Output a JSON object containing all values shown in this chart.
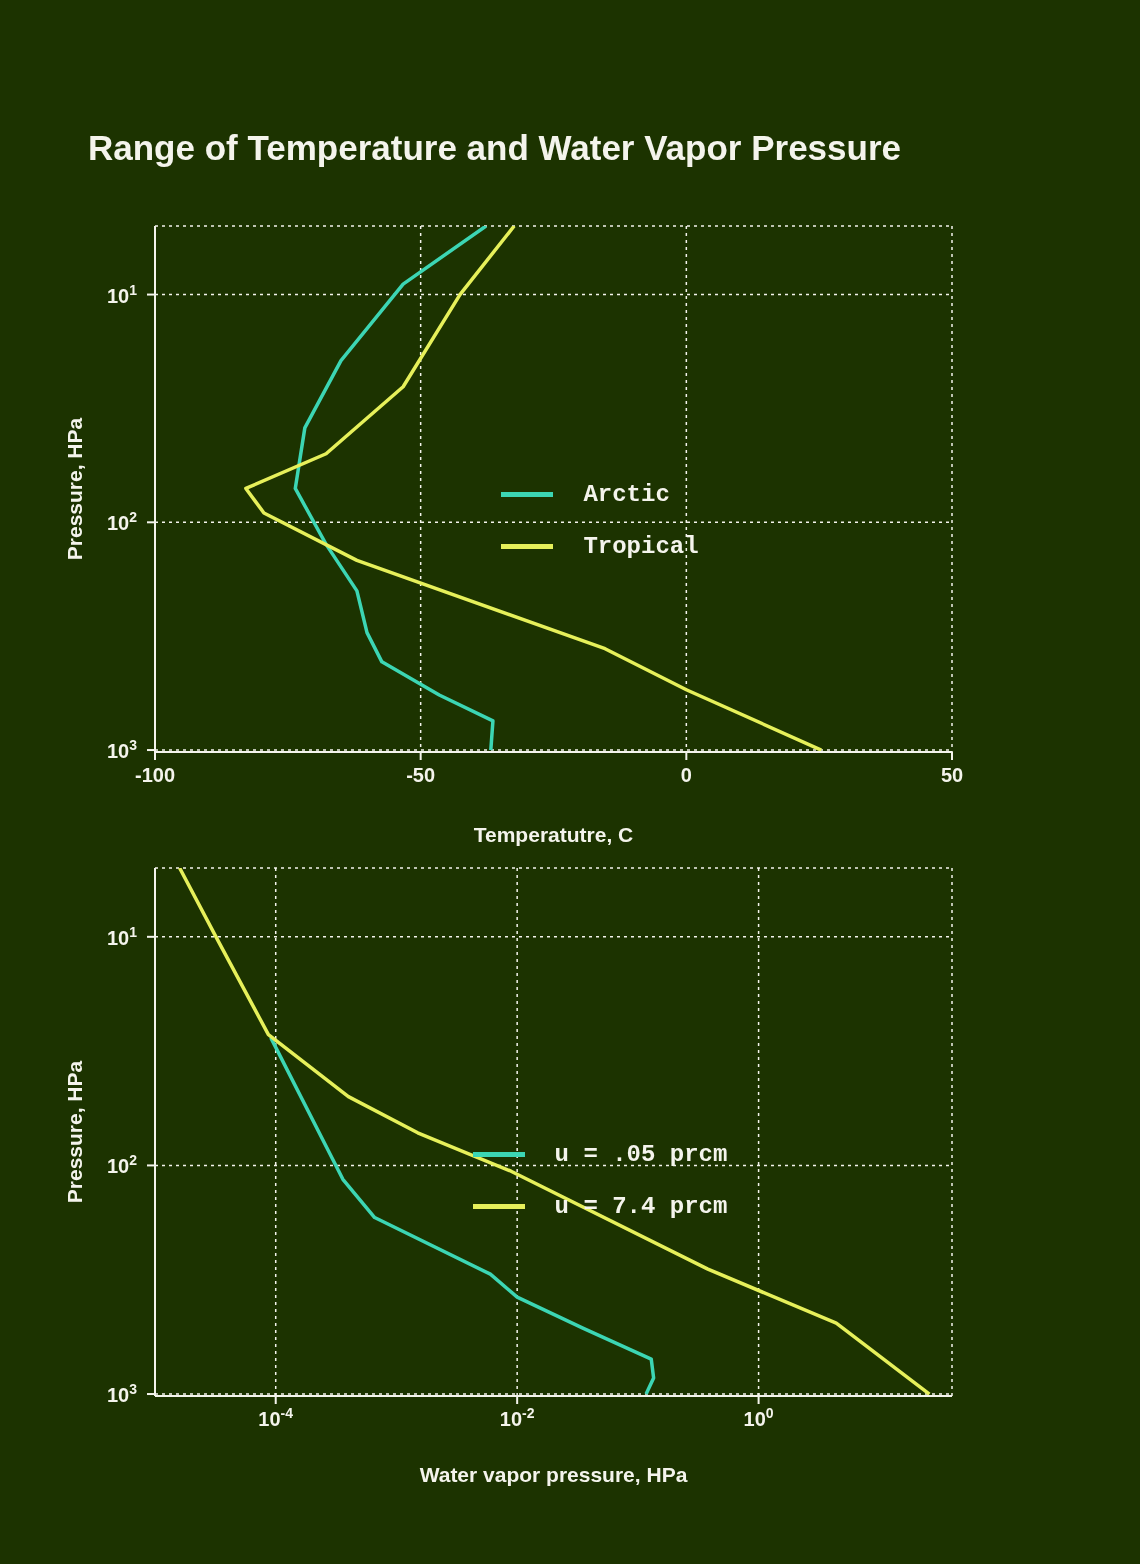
{
  "chart_data": [
    {
      "type": "line",
      "title": "Range of Temperature and Water Vapor Pressure",
      "xlabel": "Temperatutre, C",
      "ylabel": "Pressure, HPa",
      "log": "y",
      "grid": true,
      "legend": "center",
      "marker": "none",
      "line_style": "solid",
      "xlim": [
        -100,
        50
      ],
      "xticks": [
        -100,
        -50,
        0,
        50
      ],
      "ylim": [
        1020,
        5
      ],
      "yticks": [
        {
          "value": 10,
          "label": "10$^{1}$"
        },
        {
          "value": 100,
          "label": "10$^{2}$"
        },
        {
          "value": 1000,
          "label": "10$^{3}$"
        }
      ],
      "series": [
        {
          "name": "Arctic",
          "color": "#3cd6b4",
          "x": [
            -37.7,
            -53.3,
            -65.0,
            -71.8,
            -73.6,
            -67.8,
            -62.0,
            -60.1,
            -57.3,
            -46.5,
            -36.4,
            -36.8
          ],
          "values": [
            5,
            9,
            19.5,
            38.5,
            71,
            125,
            200,
            305,
            410,
            573,
            745,
            1000
          ]
        },
        {
          "name": "Tropical",
          "color": "#e6f05a",
          "x": [
            -32.4,
            -42.6,
            -53.3,
            -67.8,
            -82.9,
            -79.5,
            -62.0,
            -15.3,
            0.1,
            25.4
          ],
          "values": [
            5,
            10,
            25.4,
            50,
            71,
            91,
            147,
            359,
            545,
            1000
          ]
        }
      ]
    },
    {
      "type": "line",
      "xlabel": "Water vapor pressure, HPa",
      "ylabel": "Pressure, HPa",
      "log": "xy",
      "grid": true,
      "legend": "center",
      "marker": "none",
      "line_style": "solid",
      "xlim": [
        1e-05,
        40
      ],
      "xticks": [
        {
          "value": 0.0001,
          "label": "10$^{-4}$"
        },
        {
          "value": 0.01,
          "label": "10$^{-2}$"
        },
        {
          "value": 1,
          "label": "10$^{0}$"
        }
      ],
      "ylim": [
        1020,
        5
      ],
      "yticks": [
        {
          "value": 10,
          "label": "10$^{1}$"
        },
        {
          "value": 100,
          "label": "10$^{2}$"
        },
        {
          "value": 1000,
          "label": "10$^{3}$"
        }
      ],
      "series": [
        {
          "name": "u = .05 prcm",
          "color": "#3cd6b4",
          "x": [
            9.1e-05,
            0.00036,
            0.00066,
            0.006,
            0.01,
            0.035,
            0.129,
            0.135,
            0.117
          ],
          "values": [
            27.6,
            115,
            169,
            299,
            377,
            515,
            703,
            850,
            1000
          ]
        },
        {
          "name": "u = 7.4 prcm",
          "color": "#e6f05a",
          "x": [
            1.6e-05,
            3.2e-05,
            8.7e-05,
            0.0004,
            0.0015,
            0.0089,
            0.38,
            4.4,
            26
          ],
          "values": [
            5,
            10,
            26.8,
            50,
            72,
            106,
            284,
            490,
            1000
          ]
        }
      ]
    }
  ]
}
